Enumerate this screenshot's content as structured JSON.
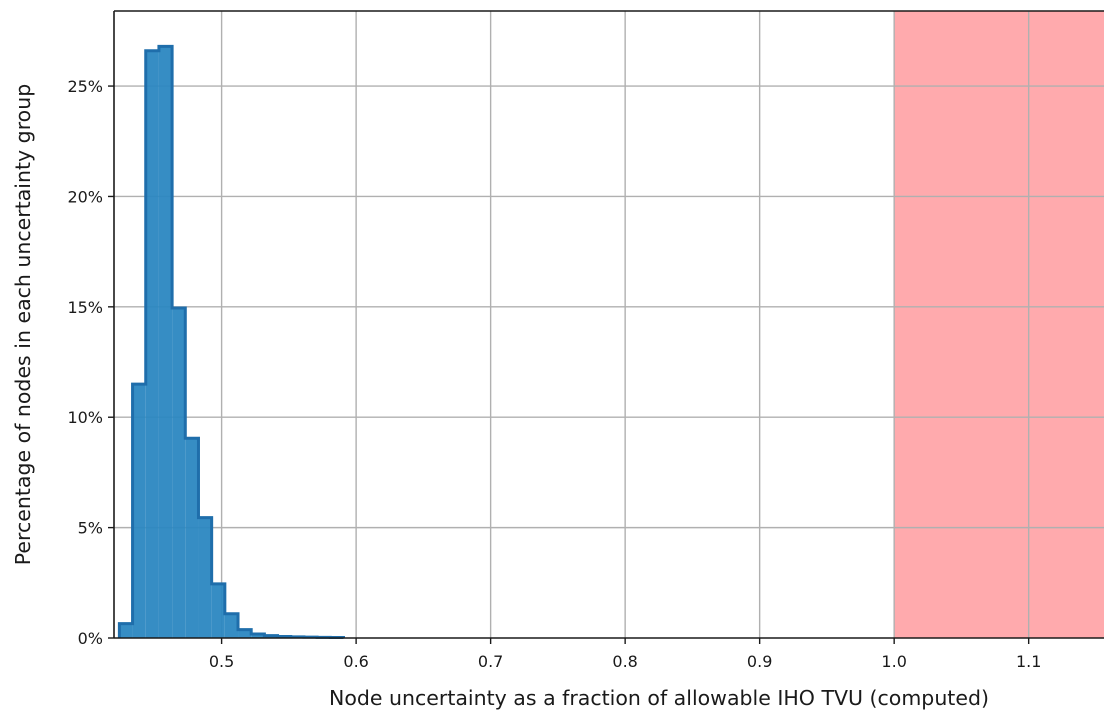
{
  "chart_data": {
    "type": "bar",
    "title": "",
    "xlabel": "Node uncertainty as a fraction of allowable IHO TVU (computed)",
    "ylabel": "Percentage of nodes in each uncertainty group",
    "xlim": [
      0.42,
      1.156
    ],
    "ylim": [
      0,
      28.4
    ],
    "x_ticks": [
      0.5,
      0.6,
      0.7,
      0.8,
      0.9,
      1.0,
      1.1
    ],
    "x_tick_labels": [
      "0.5",
      "0.6",
      "0.7",
      "0.8",
      "0.9",
      "1.0",
      "1.1"
    ],
    "y_ticks": [
      0,
      5,
      10,
      15,
      20,
      25
    ],
    "y_tick_labels": [
      "0%",
      "5%",
      "10%",
      "15%",
      "20%",
      "25%"
    ],
    "grid": true,
    "bin_edges": [
      0.424,
      0.4338,
      0.4436,
      0.4534,
      0.4632,
      0.473,
      0.4828,
      0.4926,
      0.5024,
      0.5122,
      0.522,
      0.5318,
      0.5416,
      0.5514,
      0.5612,
      0.571,
      0.5808,
      0.5906
    ],
    "values": [
      0.65,
      11.5,
      26.6,
      26.8,
      14.95,
      9.05,
      5.45,
      2.45,
      1.1,
      0.38,
      0.18,
      0.11,
      0.07,
      0.05,
      0.04,
      0.03,
      0.02
    ],
    "bar_color": "#2b87c1",
    "edge_color": "#1f6eab",
    "region": {
      "x_start": 1.0,
      "x_end": 1.156,
      "color": "#ffaaad"
    }
  }
}
